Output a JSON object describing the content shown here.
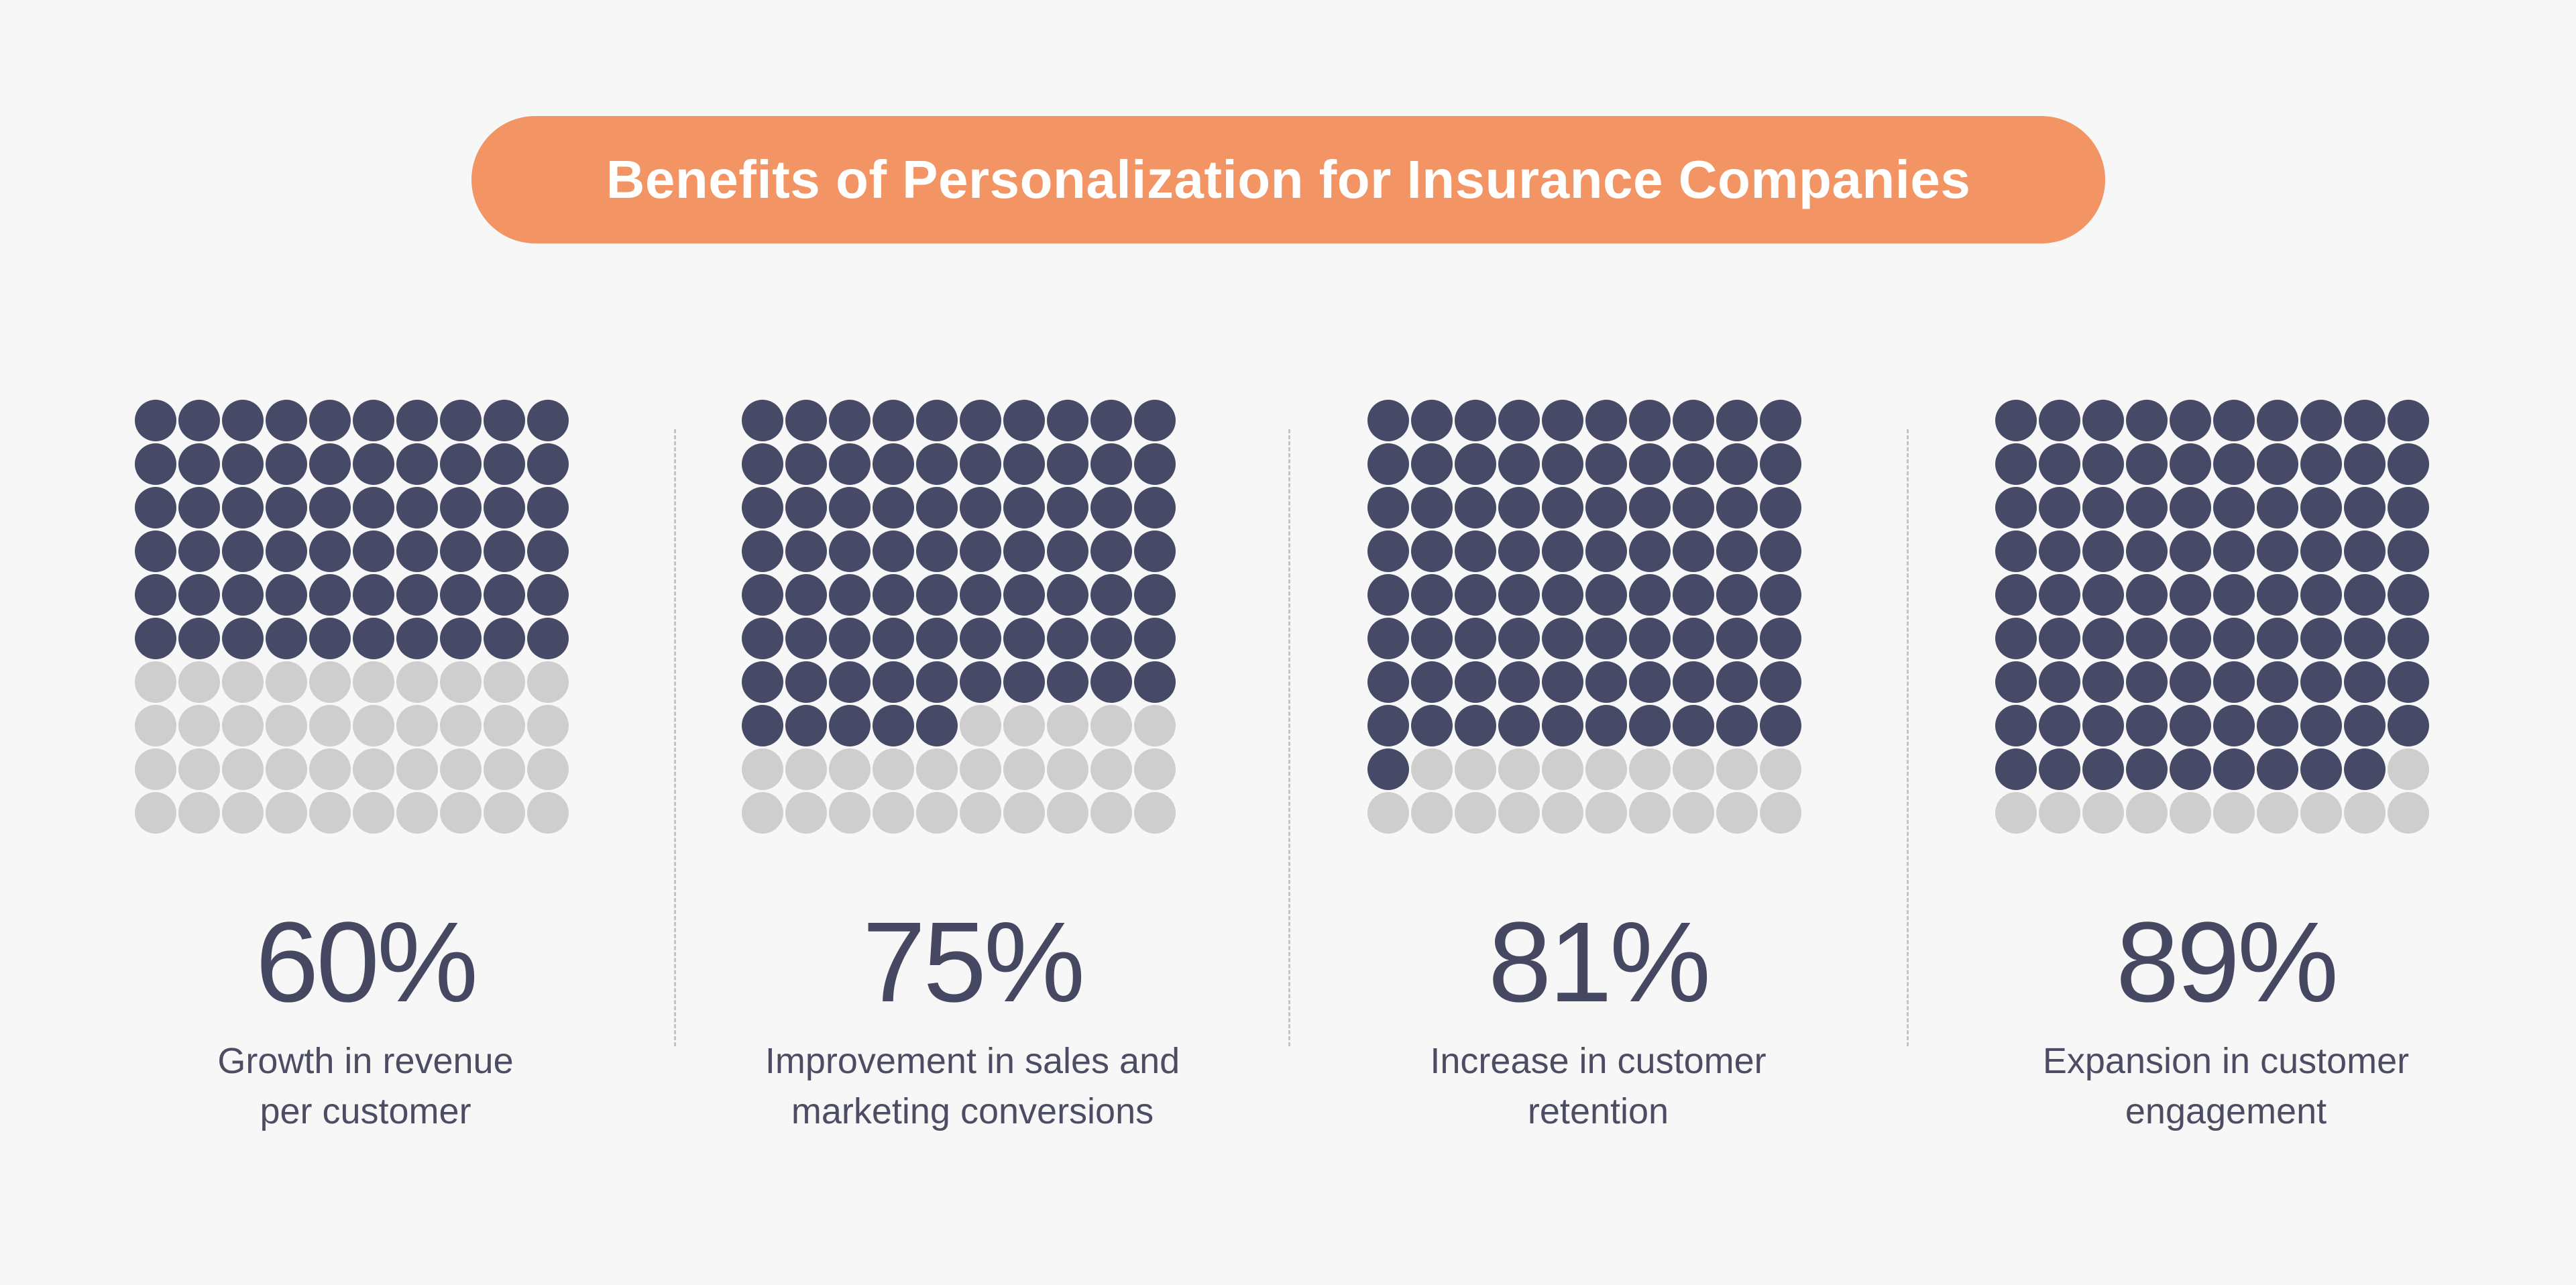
{
  "title": "Benefits of Personalization for Insurance Companies",
  "colors": {
    "background": "#f7f7f7",
    "title_pill": "#f29463",
    "filled_dot": "#474a66",
    "empty_dot": "#cecece",
    "text": "#464862"
  },
  "chart_data": {
    "type": "waffle",
    "grid": {
      "rows": 10,
      "cols": 10
    },
    "items": [
      {
        "value": 60,
        "display": "60%",
        "label_lines": [
          "Growth in revenue",
          "per customer"
        ]
      },
      {
        "value": 75,
        "display": "75%",
        "label_lines": [
          "Improvement in sales and",
          "marketing conversions"
        ]
      },
      {
        "value": 81,
        "display": "81%",
        "label_lines": [
          "Increase in customer",
          "retention"
        ]
      },
      {
        "value": 89,
        "display": "89%",
        "label_lines": [
          "Expansion in customer",
          "engagement"
        ]
      }
    ]
  }
}
